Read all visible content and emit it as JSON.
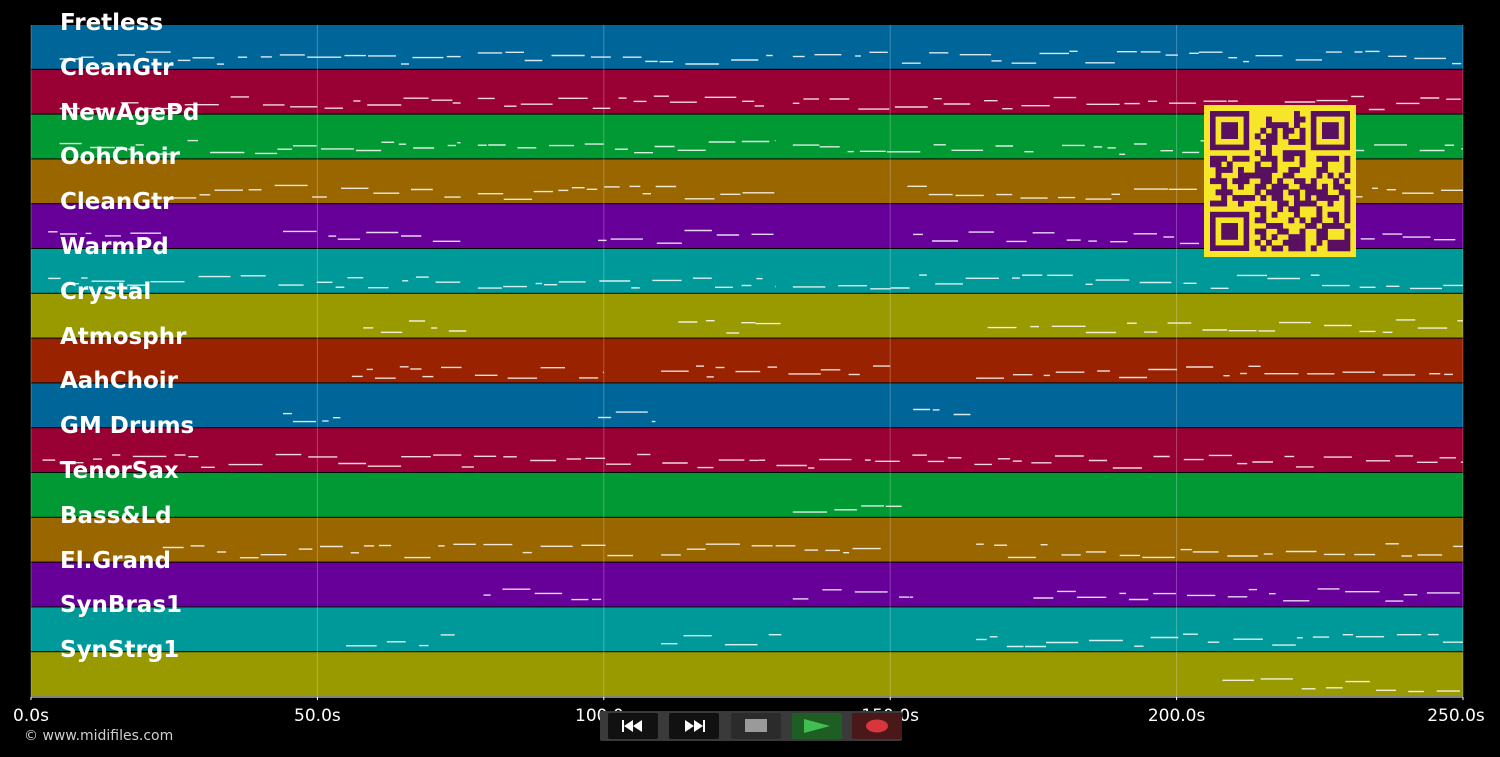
{
  "tracks": [
    {
      "name": "Fretless",
      "color": "#006699"
    },
    {
      "name": "CleanGtr",
      "color": "#990033"
    },
    {
      "name": "NewAgePd",
      "color": "#009933"
    },
    {
      "name": "OohChoir",
      "color": "#996600"
    },
    {
      "name": "CleanGtr",
      "color": "#660099"
    },
    {
      "name": "WarmPd",
      "color": "#009999"
    },
    {
      "name": "Crystal",
      "color": "#999900"
    },
    {
      "name": "Atmosphr",
      "color": "#992200"
    },
    {
      "name": "AahChoir",
      "color": "#006699"
    },
    {
      "name": "GM Drums",
      "color": "#990033"
    },
    {
      "name": "TenorSax",
      "color": "#009933"
    },
    {
      "name": "Bass&Ld",
      "color": "#996600"
    },
    {
      "name": "El.Grand",
      "color": "#660099"
    },
    {
      "name": "SynBras1",
      "color": "#009999"
    },
    {
      "name": "SynStrg1",
      "color": "#999900"
    }
  ],
  "timeline": {
    "start_s": 0,
    "end_s": 250,
    "ticks": [
      {
        "value": 0,
        "label": "0.0s"
      },
      {
        "value": 50,
        "label": "50.0s"
      },
      {
        "value": 100,
        "label": "100.0s"
      },
      {
        "value": 150,
        "label": "150.0s"
      },
      {
        "value": 200,
        "label": "200.0s"
      },
      {
        "value": 250,
        "label": "250.0s"
      }
    ]
  },
  "footer": {
    "copyright": "© www.midifiles.com"
  },
  "transport": {
    "buttons": [
      {
        "name": "rewind-button",
        "icon": "rewind-icon"
      },
      {
        "name": "fast-forward-button",
        "icon": "fast-forward-icon"
      },
      {
        "name": "stop-button",
        "icon": "stop-icon"
      },
      {
        "name": "play-button",
        "icon": "play-icon"
      },
      {
        "name": "record-button",
        "icon": "record-icon"
      }
    ]
  },
  "colors": {
    "accent_play": "#2e9e3a",
    "record": "#d8363c",
    "qr_background": "#f7e52a",
    "qr_modules": "#5a1060"
  }
}
